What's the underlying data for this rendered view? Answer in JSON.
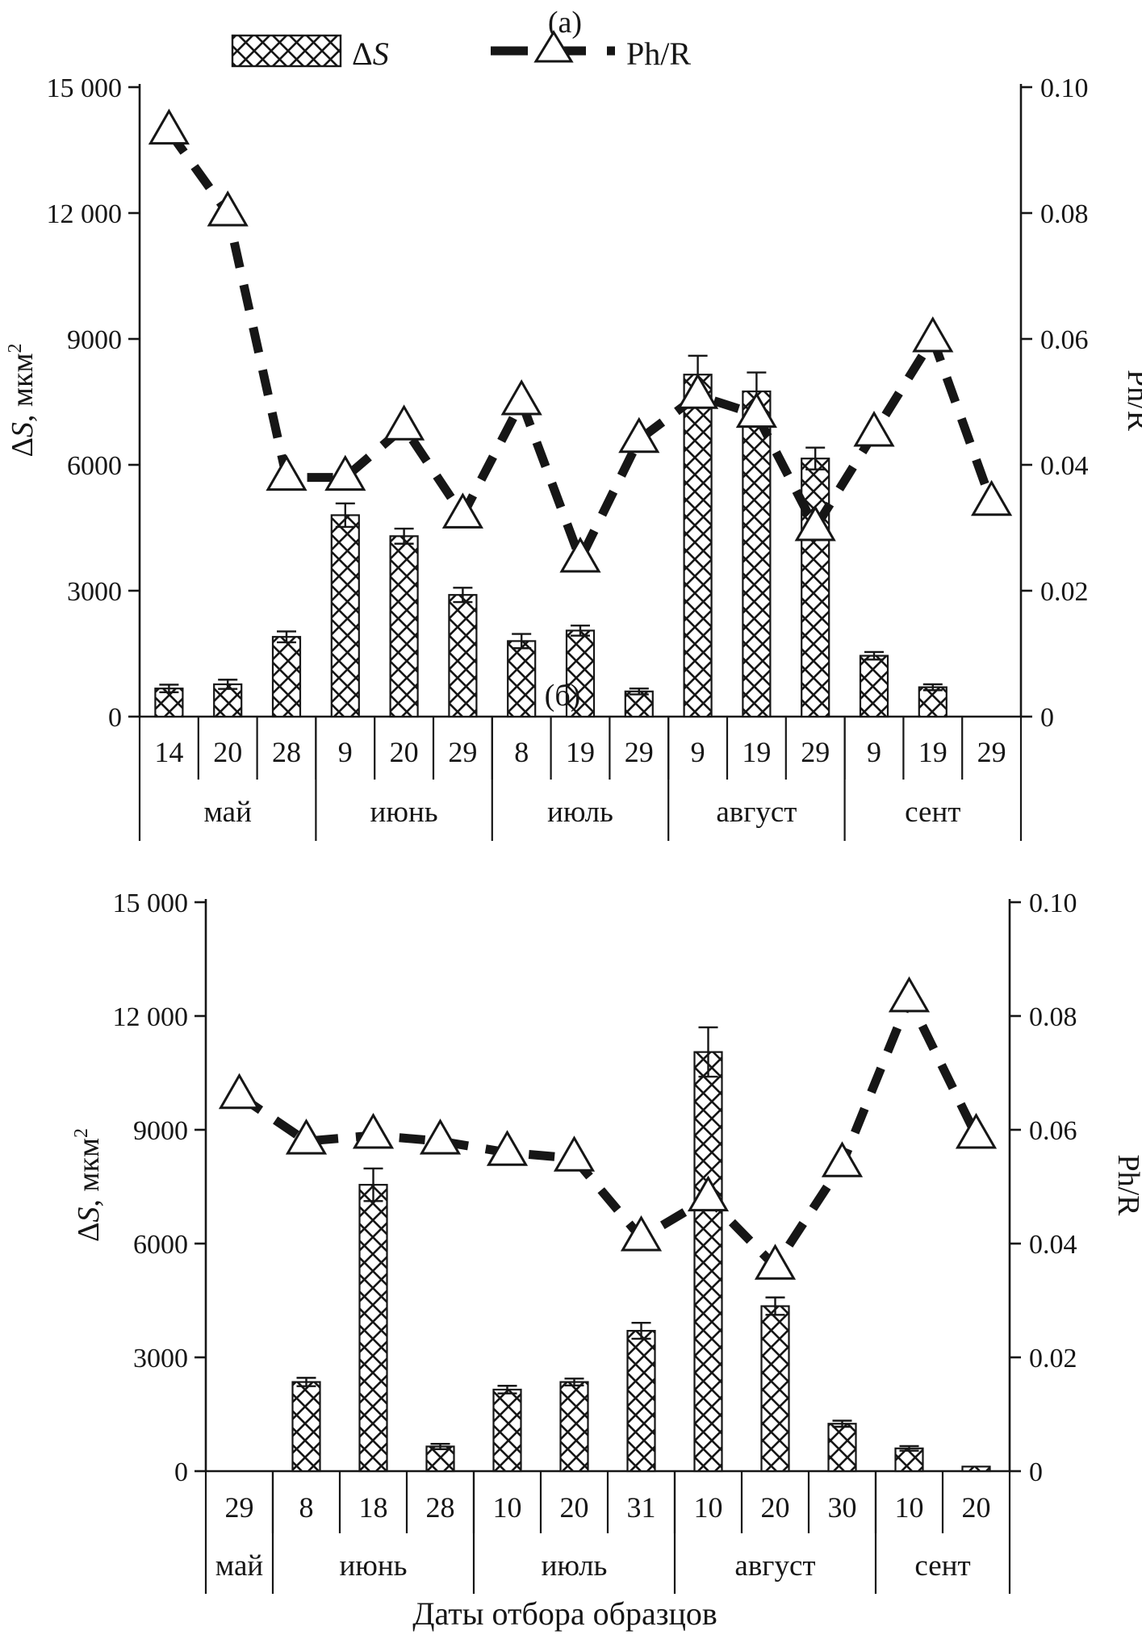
{
  "figure": {
    "xlabel": "Даты отбора образцов",
    "ink_color": "#161616",
    "bg_color": "#ffffff"
  },
  "legend": {
    "bar_label_parts": [
      {
        "t": "Δ"
      },
      {
        "t": "S",
        "i": 1
      }
    ],
    "line_label": "Ph/R"
  },
  "chart_data": [
    {
      "type": "bar+line",
      "title": "(а)",
      "left_axis": {
        "label_parts": [
          {
            "t": "Δ"
          },
          {
            "t": "S",
            "i": 1
          },
          {
            "t": ", мкм"
          },
          {
            "t": "2",
            "sup": 1
          }
        ],
        "tick_values": [
          0,
          3000,
          6000,
          9000,
          12000,
          15000
        ],
        "tick_labels": [
          "0",
          "3000",
          "6000",
          "9000",
          "12 000",
          "15 000"
        ],
        "range": [
          0,
          15000
        ]
      },
      "right_axis": {
        "label": "Ph/R",
        "tick_values": [
          0,
          0.02,
          0.04,
          0.06,
          0.08,
          0.1
        ],
        "tick_labels": [
          "0",
          "0.02",
          "0.04",
          "0.06",
          "0.08",
          "0.10"
        ],
        "range": [
          0,
          0.1
        ]
      },
      "months": [
        {
          "label": "май",
          "dates": [
            "14",
            "20",
            "28"
          ]
        },
        {
          "label": "июнь",
          "dates": [
            "9",
            "20",
            "29"
          ]
        },
        {
          "label": "июль",
          "dates": [
            "8",
            "19",
            "29"
          ]
        },
        {
          "label": "август",
          "dates": [
            "9",
            "19",
            "29"
          ]
        },
        {
          "label": "сент",
          "dates": [
            "9",
            "19",
            "29"
          ]
        }
      ],
      "bars": {
        "name": "ΔS, мкм2",
        "values": [
          670,
          770,
          1900,
          4800,
          4300,
          2900,
          1800,
          2050,
          600,
          8150,
          7750,
          6150,
          1450,
          700,
          0
        ],
        "errors": [
          90,
          110,
          130,
          280,
          180,
          170,
          170,
          120,
          70,
          450,
          450,
          260,
          90,
          70,
          0
        ]
      },
      "line": {
        "name": "Ph/R",
        "values": [
          0.093,
          0.08,
          0.038,
          0.038,
          0.046,
          0.032,
          0.05,
          0.025,
          0.044,
          0.051,
          0.048,
          0.03,
          0.045,
          0.06,
          0.034
        ]
      }
    },
    {
      "type": "bar+line",
      "title": "(б)",
      "left_axis": {
        "label_parts": [
          {
            "t": "Δ"
          },
          {
            "t": "S",
            "i": 1
          },
          {
            "t": ", мкм"
          },
          {
            "t": "2",
            "sup": 1
          }
        ],
        "tick_values": [
          0,
          3000,
          6000,
          9000,
          12000,
          15000
        ],
        "tick_labels": [
          "0",
          "3000",
          "6000",
          "9000",
          "12 000",
          "15 000"
        ],
        "range": [
          0,
          15000
        ]
      },
      "right_axis": {
        "label": "Ph/R",
        "tick_values": [
          0,
          0.02,
          0.04,
          0.06,
          0.08,
          0.1
        ],
        "tick_labels": [
          "0",
          "0.02",
          "0.04",
          "0.06",
          "0.08",
          "0.10"
        ],
        "range": [
          0,
          0.1
        ]
      },
      "months": [
        {
          "label": "май",
          "dates": [
            "29"
          ]
        },
        {
          "label": "июнь",
          "dates": [
            "8",
            "18",
            "28"
          ]
        },
        {
          "label": "июль",
          "dates": [
            "10",
            "20",
            "31"
          ]
        },
        {
          "label": "август",
          "dates": [
            "10",
            "20",
            "30"
          ]
        },
        {
          "label": "сент",
          "dates": [
            "10",
            "20"
          ]
        }
      ],
      "bars": {
        "name": "ΔS, мкм2",
        "values": [
          0,
          2350,
          7550,
          650,
          2150,
          2350,
          3700,
          11050,
          4350,
          1250,
          600,
          120
        ],
        "errors": [
          0,
          110,
          430,
          70,
          100,
          90,
          210,
          650,
          230,
          80,
          60,
          0
        ]
      },
      "line": {
        "name": "Ph/R",
        "values": [
          0.066,
          0.058,
          0.059,
          0.058,
          0.056,
          0.055,
          0.041,
          0.048,
          0.036,
          0.054,
          0.083,
          0.059
        ]
      }
    }
  ]
}
